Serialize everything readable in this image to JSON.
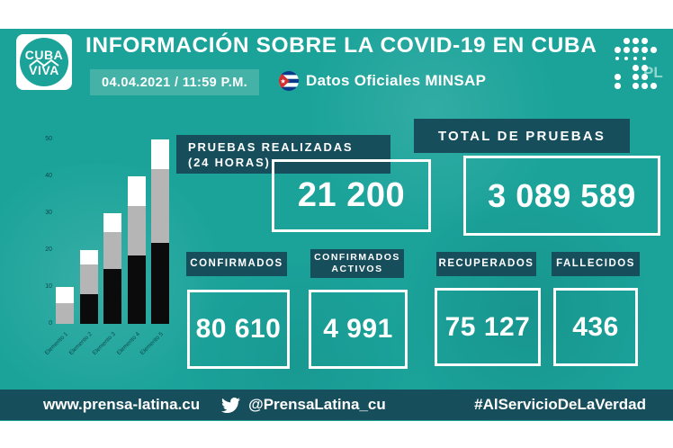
{
  "header": {
    "logo": {
      "line1": "CUBA",
      "line2": "VIVA"
    },
    "title": "INFORMACIÓN SOBRE LA COVID-19 EN CUBA",
    "datetime": "04.04.2021 / 11:59 P.M.",
    "source_label": "Datos Oficiales MINSAP",
    "flag_icon": "cuba-flag-icon",
    "pl_logo_text": "PL"
  },
  "stats": {
    "pruebas_realizadas": {
      "label_line1": "PRUEBAS REALIZADAS",
      "label_line2": "(24 HORAS)",
      "value": "21 200"
    },
    "total_pruebas": {
      "label": "TOTAL DE PRUEBAS",
      "value": "3 089 589"
    },
    "confirmados": {
      "label": "CONFIRMADOS",
      "value": "80 610"
    },
    "confirmados_activos": {
      "label_line1": "CONFIRMADOS",
      "label_line2": "ACTIVOS",
      "value": "4 991"
    },
    "recuperados": {
      "label": "RECUPERADOS",
      "value": "75 127"
    },
    "fallecidos": {
      "label": "FALLECIDOS",
      "value": "436"
    }
  },
  "footer": {
    "website": "www.prensa-latina.cu",
    "twitter_icon": "twitter-bird-icon",
    "twitter_handle": "@PrensaLatina_cu",
    "hashtag": "#AlServicioDeLaVerdad"
  },
  "colors": {
    "background_teal": "#1ba39a",
    "dark_panel": "#174e5c",
    "date_chip": "#45b2a8",
    "value_border": "#ffffff",
    "bar_black": "#0b0b0b",
    "bar_gray": "#b5b5b5",
    "bar_white": "#ffffff"
  },
  "chart_data": {
    "type": "bar",
    "stacked": true,
    "title": "",
    "xlabel": "",
    "ylabel": "",
    "categories": [
      "Elemento 1",
      "Elemento 2",
      "Elemento 3",
      "Elemento 4",
      "Elemento 5"
    ],
    "series": [
      {
        "name": "segmento-negro",
        "color": "#0b0b0b",
        "values": [
          0,
          8,
          15,
          18.5,
          22
        ]
      },
      {
        "name": "segmento-gris",
        "color": "#b5b5b5",
        "values": [
          5.5,
          8,
          10,
          13.5,
          20
        ]
      },
      {
        "name": "segmento-blanco",
        "color": "#ffffff",
        "values": [
          4.5,
          4,
          5,
          8,
          8
        ]
      }
    ],
    "totals": [
      10,
      20,
      30,
      40,
      50
    ],
    "ylim": [
      0,
      50
    ],
    "yticks": [
      0,
      10,
      20,
      30,
      40,
      50
    ],
    "grid": false,
    "legend": "none"
  }
}
